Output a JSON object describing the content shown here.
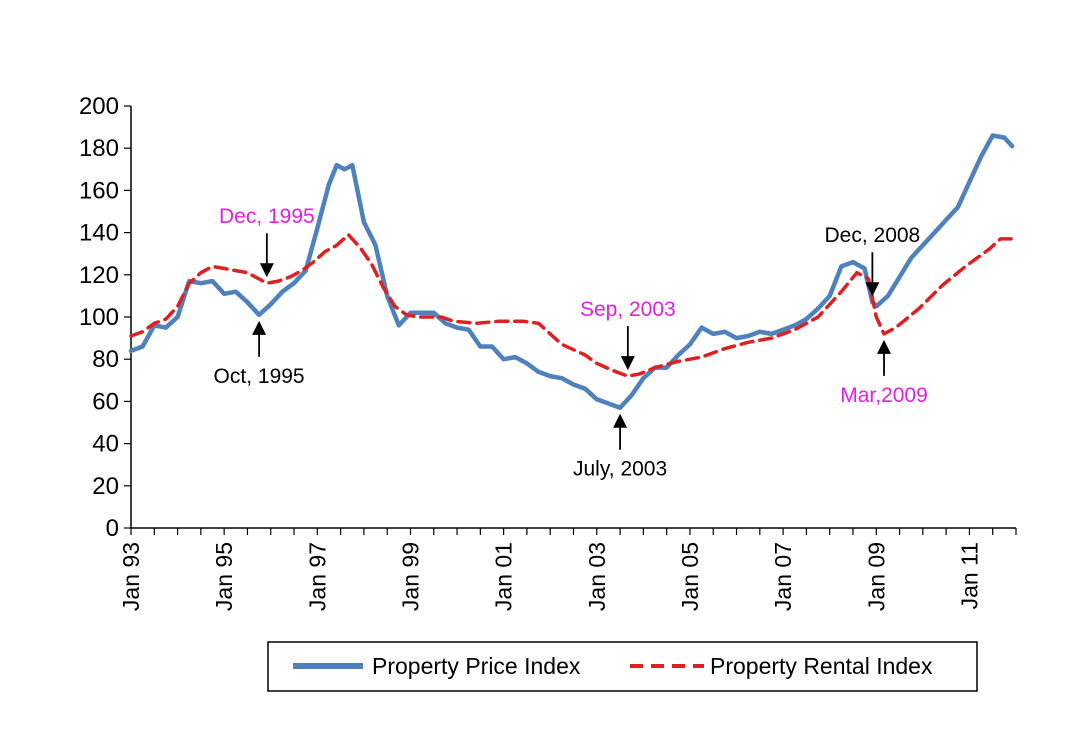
{
  "chart_data": {
    "type": "line",
    "title": "",
    "xlabel": "",
    "ylabel": "",
    "ylim": [
      0,
      200
    ],
    "yticks": [
      0,
      20,
      40,
      60,
      80,
      100,
      120,
      140,
      160,
      180,
      200
    ],
    "xticks": [
      "Jan 93",
      "Jan 95",
      "Jan 97",
      "Jan 99",
      "Jan 01",
      "Jan 03",
      "Jan 05",
      "Jan 07",
      "Jan 09",
      "Jan 11"
    ],
    "x_range": [
      "1993-01",
      "2011-12"
    ],
    "grid": false,
    "legend_position": "bottom",
    "series": [
      {
        "name": "Property Price Index",
        "color": "#4f81bd",
        "style": "solid",
        "points": [
          [
            "1993-01",
            84
          ],
          [
            "1993-04",
            86
          ],
          [
            "1993-07",
            96
          ],
          [
            "1993-10",
            95
          ],
          [
            "1994-01",
            100
          ],
          [
            "1994-04",
            117
          ],
          [
            "1994-07",
            116
          ],
          [
            "1994-10",
            117
          ],
          [
            "1995-01",
            111
          ],
          [
            "1995-04",
            112
          ],
          [
            "1995-07",
            107
          ],
          [
            "1995-10",
            101
          ],
          [
            "1996-01",
            106
          ],
          [
            "1996-04",
            112
          ],
          [
            "1996-07",
            116
          ],
          [
            "1996-10",
            122
          ],
          [
            "1997-01",
            142
          ],
          [
            "1997-04",
            163
          ],
          [
            "1997-06",
            172
          ],
          [
            "1997-08",
            170
          ],
          [
            "1997-10",
            172
          ],
          [
            "1998-01",
            145
          ],
          [
            "1998-04",
            134
          ],
          [
            "1998-07",
            110
          ],
          [
            "1998-10",
            96
          ],
          [
            "1999-01",
            102
          ],
          [
            "1999-04",
            102
          ],
          [
            "1999-07",
            102
          ],
          [
            "1999-10",
            97
          ],
          [
            "2000-01",
            95
          ],
          [
            "2000-04",
            94
          ],
          [
            "2000-07",
            86
          ],
          [
            "2000-10",
            86
          ],
          [
            "2001-01",
            80
          ],
          [
            "2001-04",
            81
          ],
          [
            "2001-07",
            78
          ],
          [
            "2001-10",
            74
          ],
          [
            "2002-01",
            72
          ],
          [
            "2002-04",
            71
          ],
          [
            "2002-07",
            68
          ],
          [
            "2002-10",
            66
          ],
          [
            "2003-01",
            61
          ],
          [
            "2003-04",
            59
          ],
          [
            "2003-07",
            57
          ],
          [
            "2003-10",
            63
          ],
          [
            "2004-01",
            71
          ],
          [
            "2004-04",
            76
          ],
          [
            "2004-07",
            76
          ],
          [
            "2004-10",
            82
          ],
          [
            "2005-01",
            87
          ],
          [
            "2005-04",
            95
          ],
          [
            "2005-07",
            92
          ],
          [
            "2005-10",
            93
          ],
          [
            "2006-01",
            90
          ],
          [
            "2006-04",
            91
          ],
          [
            "2006-07",
            93
          ],
          [
            "2006-10",
            92
          ],
          [
            "2007-01",
            94
          ],
          [
            "2007-04",
            96
          ],
          [
            "2007-07",
            99
          ],
          [
            "2007-10",
            104
          ],
          [
            "2008-01",
            110
          ],
          [
            "2008-04",
            124
          ],
          [
            "2008-07",
            126
          ],
          [
            "2008-10",
            123
          ],
          [
            "2008-12",
            107
          ],
          [
            "2009-01",
            105
          ],
          [
            "2009-04",
            110
          ],
          [
            "2009-07",
            119
          ],
          [
            "2009-10",
            128
          ],
          [
            "2010-01",
            134
          ],
          [
            "2010-04",
            140
          ],
          [
            "2010-07",
            146
          ],
          [
            "2010-10",
            152
          ],
          [
            "2011-01",
            164
          ],
          [
            "2011-04",
            176
          ],
          [
            "2011-07",
            186
          ],
          [
            "2011-10",
            185
          ],
          [
            "2011-12",
            181
          ]
        ]
      },
      {
        "name": "Property Rental Index",
        "color": "#e02020",
        "style": "dashed",
        "points": [
          [
            "1993-01",
            91
          ],
          [
            "1993-04",
            93
          ],
          [
            "1993-07",
            97
          ],
          [
            "1993-10",
            99
          ],
          [
            "1994-01",
            105
          ],
          [
            "1994-04",
            116
          ],
          [
            "1994-07",
            121
          ],
          [
            "1994-10",
            124
          ],
          [
            "1995-01",
            123
          ],
          [
            "1995-04",
            122
          ],
          [
            "1995-07",
            121
          ],
          [
            "1995-10",
            118
          ],
          [
            "1995-12",
            116
          ],
          [
            "1996-03",
            117
          ],
          [
            "1996-06",
            119
          ],
          [
            "1996-09",
            122
          ],
          [
            "1996-12",
            126
          ],
          [
            "1997-03",
            131
          ],
          [
            "1997-06",
            134
          ],
          [
            "1997-09",
            139
          ],
          [
            "1997-12",
            133
          ],
          [
            "1998-03",
            125
          ],
          [
            "1998-06",
            114
          ],
          [
            "1998-09",
            105
          ],
          [
            "1998-12",
            101
          ],
          [
            "1999-03",
            100
          ],
          [
            "1999-06",
            100
          ],
          [
            "1999-09",
            100
          ],
          [
            "1999-12",
            98
          ],
          [
            "2000-06",
            97
          ],
          [
            "2000-12",
            98
          ],
          [
            "2001-06",
            98
          ],
          [
            "2001-10",
            97
          ],
          [
            "2002-01",
            92
          ],
          [
            "2002-04",
            87
          ],
          [
            "2002-10",
            82
          ],
          [
            "2003-01",
            78
          ],
          [
            "2003-06",
            74
          ],
          [
            "2003-09",
            72
          ],
          [
            "2003-12",
            73
          ],
          [
            "2004-04",
            76
          ],
          [
            "2004-10",
            79
          ],
          [
            "2005-04",
            81
          ],
          [
            "2005-10",
            85
          ],
          [
            "2006-04",
            88
          ],
          [
            "2006-10",
            90
          ],
          [
            "2007-04",
            94
          ],
          [
            "2007-10",
            100
          ],
          [
            "2008-04",
            112
          ],
          [
            "2008-08",
            121
          ],
          [
            "2008-11",
            118
          ],
          [
            "2009-01",
            100
          ],
          [
            "2009-03",
            92
          ],
          [
            "2009-06",
            95
          ],
          [
            "2009-12",
            104
          ],
          [
            "2010-06",
            115
          ],
          [
            "2010-12",
            124
          ],
          [
            "2011-06",
            132
          ],
          [
            "2011-09",
            137
          ],
          [
            "2011-12",
            137
          ]
        ]
      }
    ],
    "annotations": [
      {
        "label": "Dec, 1995",
        "color": "#e020e0",
        "target": [
          "1995-12",
          116
        ],
        "arrow_from": "above"
      },
      {
        "label": "Oct, 1995",
        "color": "#000000",
        "target": [
          "1995-10",
          101
        ],
        "arrow_from": "below"
      },
      {
        "label": "Sep, 2003",
        "color": "#e020e0",
        "target": [
          "2003-09",
          72
        ],
        "arrow_from": "above"
      },
      {
        "label": "July, 2003",
        "color": "#000000",
        "target": [
          "2003-07",
          57
        ],
        "arrow_from": "below"
      },
      {
        "label": "Dec, 2008",
        "color": "#000000",
        "target": [
          "2008-12",
          107
        ],
        "arrow_from": "above"
      },
      {
        "label": "Mar,2009",
        "color": "#e020e0",
        "target": [
          "2009-03",
          92
        ],
        "arrow_from": "below"
      }
    ]
  },
  "legend": {
    "price_label": "Property Price Index",
    "rental_label": "Property Rental Index"
  }
}
